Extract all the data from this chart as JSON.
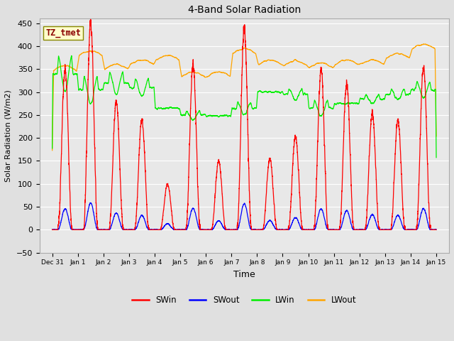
{
  "title": "4-Band Solar Radiation",
  "xlabel": "Time",
  "ylabel": "Solar Radiation (W/m2)",
  "ylim": [
    -50,
    460
  ],
  "bg_color": "#e0e0e0",
  "plot_bg_color": "#e8e8e8",
  "legend_entries": [
    "SWin",
    "SWout",
    "LWin",
    "LWout"
  ],
  "legend_colors": [
    "red",
    "blue",
    "#00ee00",
    "orange"
  ],
  "yticks": [
    -50,
    0,
    50,
    100,
    150,
    200,
    250,
    300,
    350,
    400,
    450
  ],
  "xtick_labels": [
    "Dec 31",
    "Jan 1",
    "Jan 2",
    "Jan 3",
    "Jan 4",
    "Jan 5",
    "Jan 6",
    "Jan 7",
    "Jan 8",
    "Jan 9",
    "Jan 10",
    "Jan 11",
    "Jan 12",
    "Jan 13",
    "Jan 14",
    "Jan 15"
  ],
  "xtick_positions": [
    0,
    1,
    2,
    3,
    4,
    5,
    6,
    7,
    8,
    9,
    10,
    11,
    12,
    13,
    14,
    15
  ],
  "annotation_label": "TZ_tmet"
}
